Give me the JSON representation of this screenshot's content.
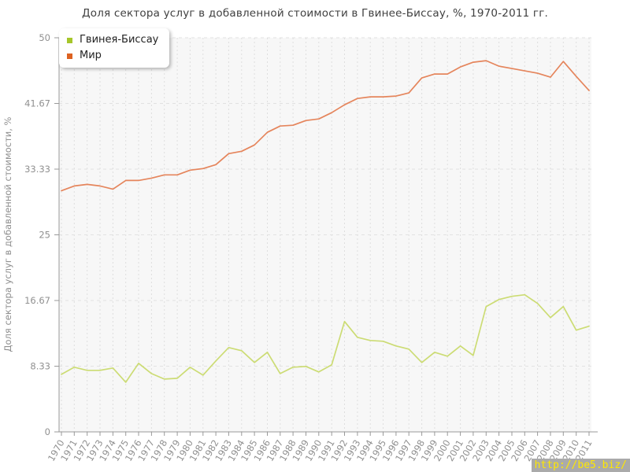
{
  "chart_data": {
    "type": "line",
    "title": "Доля сектора услуг в добавленной стоимости в Гвинее-Биссау, %, 1970-2011 гг.",
    "ylabel": "Доля сектора услуг в добавленной стоимости, %",
    "xlabel": "",
    "ylim": [
      0,
      50
    ],
    "yticks": [
      "0",
      "8.33",
      "16.67",
      "25",
      "33.33",
      "41.67",
      "50"
    ],
    "ytick_values": [
      0,
      8.33,
      16.67,
      25,
      33.33,
      41.67,
      50
    ],
    "grid": true,
    "legend_position": "top-left",
    "categories": [
      "1970",
      "1971",
      "1972",
      "1973",
      "1974",
      "1975",
      "1976",
      "1977",
      "1978",
      "1979",
      "1980",
      "1981",
      "1982",
      "1983",
      "1984",
      "1985",
      "1986",
      "1987",
      "1988",
      "1989",
      "1990",
      "1991",
      "1992",
      "1993",
      "1994",
      "1995",
      "1996",
      "1997",
      "1998",
      "1999",
      "2000",
      "2001",
      "2002",
      "2003",
      "2004",
      "2005",
      "2006",
      "2007",
      "2008",
      "2009",
      "2010",
      "2011"
    ],
    "series": [
      {
        "name": "Гвинея-Биссау",
        "color": "#ccdc74",
        "legend_color": "#a6c62a",
        "values": [
          7.3,
          8.2,
          7.8,
          7.8,
          8.1,
          6.3,
          8.7,
          7.4,
          6.7,
          6.8,
          8.2,
          7.2,
          9.0,
          10.7,
          10.3,
          8.8,
          10.1,
          7.4,
          8.2,
          8.3,
          7.6,
          8.5,
          14.0,
          12.0,
          11.6,
          11.5,
          10.9,
          10.5,
          8.8,
          10.1,
          9.6,
          10.9,
          9.7,
          15.9,
          16.8,
          17.2,
          17.4,
          16.3,
          14.5,
          15.9,
          12.9,
          13.4
        ]
      },
      {
        "name": "Мир",
        "color": "#e5855c",
        "legend_color": "#dd6221",
        "values": [
          30.6,
          31.2,
          31.4,
          31.2,
          30.8,
          31.9,
          31.9,
          32.2,
          32.6,
          32.6,
          33.2,
          33.4,
          33.9,
          35.3,
          35.6,
          36.4,
          38.0,
          38.8,
          38.9,
          39.5,
          39.7,
          40.5,
          41.5,
          42.3,
          42.5,
          42.5,
          42.6,
          43.0,
          44.9,
          45.4,
          45.4,
          46.3,
          46.9,
          47.1,
          46.4,
          46.1,
          45.8,
          45.5,
          45.0,
          47.0,
          45.1,
          43.3
        ]
      }
    ],
    "colors": {
      "plot_background": "#f7f7f7",
      "page_background": "#ffffff",
      "grid_vertical": "#dedede",
      "grid_horizontal": "#e2e2e2",
      "axis": "#999999",
      "tick_label": "#909090",
      "title_text": "#404040"
    }
  },
  "watermark": {
    "text": "http://be5.biz/",
    "color": "#ffe800",
    "background": "#aaaaaa"
  }
}
